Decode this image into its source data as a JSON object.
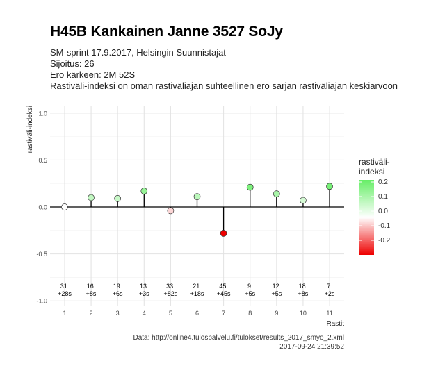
{
  "header": {
    "title": "H45B Kankainen Janne 3527 SoJy",
    "line1": "SM-sprint 17.9.2017, Helsingin Suunnistajat",
    "line2": "Sijoitus: 26",
    "line3": "Ero kärkeen: 2M 52S",
    "line4": "Rastiväli-indeksi on oman rastiväliajan suhteellinen ero sarjan rastiväliajan keskiarvoon"
  },
  "footer": {
    "source": "Data: http://online4.tulospalvelu.fi/tulokset/results_2017_smyo_2.xml",
    "timestamp": "2017-09-24 21:39:52"
  },
  "legend": {
    "title_line1": "rastiväli-",
    "title_line2": "indeksi",
    "labels": [
      "0.2",
      "0.1",
      "0.0",
      "-0.1",
      "-0.2"
    ],
    "colors": {
      "low": "#ee0000",
      "mid": "#ffffff",
      "high": "#66ee66"
    }
  },
  "chart_data": {
    "type": "scatter",
    "xlabel": "Rastit",
    "ylabel": "rastiväli-indeksi",
    "ylim": [
      -1.0,
      1.0
    ],
    "yticks": [
      "1.0",
      "0.5",
      "0.0",
      "-0.5",
      "-1.0"
    ],
    "ytick_values": [
      1.0,
      0.5,
      0.0,
      -0.5,
      -1.0
    ],
    "x": [
      1,
      2,
      3,
      4,
      5,
      6,
      7,
      8,
      9,
      10,
      11
    ],
    "xticks": [
      "1",
      "2",
      "3",
      "4",
      "5",
      "6",
      "7",
      "8",
      "9",
      "10",
      "11"
    ],
    "values": [
      0.0,
      0.1,
      0.09,
      0.17,
      -0.04,
      0.11,
      -0.28,
      0.21,
      0.14,
      0.07,
      0.22
    ],
    "rank_labels": [
      "31.",
      "16.",
      "19.",
      "13.",
      "33.",
      "21.",
      "45.",
      "9.",
      "12.",
      "18.",
      "7."
    ],
    "gap_labels": [
      "+28s",
      "+8s",
      "+6s",
      "+3s",
      "+82s",
      "+18s",
      "+45s",
      "+5s",
      "+5s",
      "+8s",
      "+2s"
    ],
    "grid": true,
    "legend_position": "right"
  }
}
